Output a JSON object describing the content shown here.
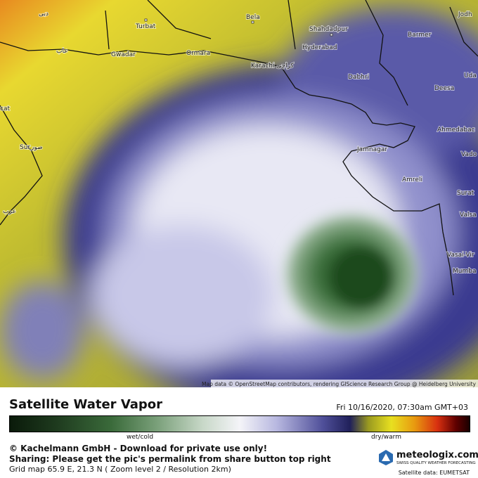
{
  "map": {
    "places": [
      "دبی",
      "Turbat",
      "Bela",
      "Jodh",
      "Shahdadpur",
      "Barmer",
      "Hyderabad",
      "عاب",
      "Gwadar",
      "Ormara",
      "Karachi",
      "کراچی",
      "Dabhri",
      "Uda",
      "Deesa",
      "cat",
      "Ahmedabac",
      "Sur",
      "صور",
      "Jamnagar",
      "Vado",
      "Amreli",
      "Surat",
      "Valsa",
      "Vasai-Vir",
      "Mumba",
      "عرب"
    ],
    "attribution": "Map data © OpenStreetMap contributors, rendering GIScience Research Group @ Heidelberg University"
  },
  "footer": {
    "title": "Satellite Water Vapor",
    "datetime": "Fri 10/16/2020, 07:30am GMT+03",
    "legend_left": "wet/cold",
    "legend_right": "dry/warm",
    "copyright": "© Kachelmann GmbH - Download for private use only!",
    "sharing": "Sharing: Please get the pic's permalink from share button top right",
    "grid": "Grid map 65.9 E, 21.3 N ( Zoom level 2 / Resolution 2km)",
    "brand": "meteologix.com",
    "tagline": "SWISS QUALITY WEATHER FORECASTING",
    "source": "Satellite data: EUMETSAT"
  }
}
